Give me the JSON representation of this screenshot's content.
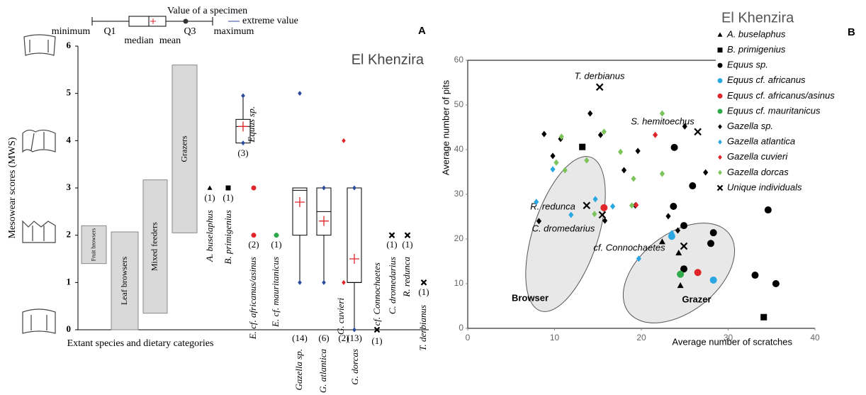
{
  "chart_data": [
    {
      "type": "box",
      "panel": "A",
      "title": "El Khenzira",
      "y_label": "Mesowear scores (MWS)",
      "x_label": "Extant species and dietary categories",
      "ylim": [
        0,
        6
      ],
      "yticks": [
        0,
        1,
        2,
        3,
        4,
        5,
        6
      ],
      "box_key": [
        "minimum",
        "Q1",
        "median",
        "mean",
        "Q3",
        "maximum",
        "Value of a specimen",
        "extreme value"
      ],
      "dietary_categories": [
        {
          "label": "Fruit browsers",
          "low": 1.4,
          "high": 2.2
        },
        {
          "label": "Leaf browsers",
          "low": 0,
          "high": 2.07
        },
        {
          "label": "Mixed feeders",
          "low": 0.35,
          "high": 3.17
        },
        {
          "label": "Grazers",
          "low": 2.05,
          "high": 5.6
        }
      ],
      "taxa": [
        {
          "name": "A. buselaphus",
          "n": "(1)",
          "marker": "triangle",
          "color": "#000000",
          "values": [
            3
          ]
        },
        {
          "name": "B. primigenius",
          "n": "(1)",
          "marker": "square",
          "color": "#000000",
          "values": [
            3
          ]
        },
        {
          "name": "Equus sp.",
          "n": "(3)",
          "marker": "diamond",
          "color": "#2b4a9c",
          "values": [
            4.95,
            3.95
          ],
          "box": {
            "min": 3.95,
            "q1": 3.95,
            "median": 4.3,
            "q3": 4.45,
            "max": 4.95,
            "mean": 4.3
          }
        },
        {
          "name": "E. cf. africanus/asinus",
          "n": "(2)",
          "marker": "circle",
          "color": "#e0262a",
          "values": [
            3,
            2
          ]
        },
        {
          "name": "E. cf. mauritanicus",
          "n": "(1)",
          "marker": "circle",
          "color": "#2eaa4a",
          "values": [
            2
          ]
        },
        {
          "name": "Gazella sp.",
          "n": "(14)",
          "marker": "diamond",
          "color": "#2b4a9c",
          "values": [
            5,
            1
          ],
          "box": {
            "min": 1,
            "q1": 2,
            "median": 2.95,
            "q3": 3,
            "max": 3,
            "mean": 2.7
          }
        },
        {
          "name": "G. atlantica",
          "n": "(6)",
          "marker": "diamond",
          "color": "#2b4a9c",
          "values": [
            3,
            1
          ],
          "box": {
            "min": 1,
            "q1": 2,
            "median": 2.5,
            "q3": 3,
            "max": 3,
            "mean": 2.3
          }
        },
        {
          "name": "G. cuvieri",
          "n": "(2)",
          "marker": "diamond",
          "color": "#e0262a",
          "values": [
            4,
            1
          ]
        },
        {
          "name": "G. dorcas",
          "n": "(13)",
          "marker": "diamond",
          "color": "#2b4a9c",
          "values": [
            3,
            0
          ],
          "box": {
            "min": 0,
            "q1": 1,
            "median": 1,
            "q3": 3,
            "max": 3,
            "mean": 1.5
          }
        },
        {
          "name": "cf. Connochaetes",
          "n": "(1)",
          "marker": "x",
          "color": "#000000",
          "values": [
            0
          ]
        },
        {
          "name": "C. dromedarius",
          "n": "(1)",
          "marker": "x",
          "color": "#000000",
          "values": [
            2
          ]
        },
        {
          "name": "R. redunca",
          "n": "(1)",
          "marker": "x",
          "color": "#000000",
          "values": [
            2
          ]
        },
        {
          "name": "T. derbianus",
          "n": "(1)",
          "marker": "x",
          "color": "#000000",
          "values": [
            1
          ]
        }
      ]
    },
    {
      "type": "scatter",
      "panel": "B",
      "title": "El Khenzira",
      "x_label": "Average number of scratches",
      "y_label": "Average number of pits",
      "xlim": [
        0,
        40
      ],
      "xticks": [
        0,
        10,
        20,
        30,
        40
      ],
      "ylim": [
        0,
        60
      ],
      "yticks": [
        0,
        10,
        20,
        30,
        40,
        50,
        60
      ],
      "annotations": [
        "T. derbianus",
        "S. hemitoechus",
        "R. redunca",
        "C. dromedarius",
        "cf. Connochaetes",
        "Browser",
        "Grazer"
      ],
      "series": [
        {
          "name": "A. buselaphus",
          "marker": "triangle",
          "color": "#000000",
          "x": [
            22.4,
            24.3,
            24.5
          ],
          "y": [
            19.4,
            16.9,
            9.6
          ]
        },
        {
          "name": "B. primigenius",
          "marker": "square",
          "color": "#000000",
          "x": [
            13.2,
            34.1
          ],
          "y": [
            40.6,
            2.5
          ]
        },
        {
          "name": "Equus sp.",
          "marker": "circle",
          "color": "#000000",
          "x": [
            23.8,
            34.6,
            25.9,
            23.7,
            24.9,
            28.3,
            28.0,
            24.9,
            33.1,
            35.5
          ],
          "y": [
            40.5,
            26.5,
            31.9,
            27.3,
            23.0,
            21.4,
            19.0,
            13.3,
            11.9,
            10.0
          ]
        },
        {
          "name": "Equus cf. africanus",
          "marker": "circle",
          "color": "#2aa7e1",
          "x": [
            23.5,
            28.3
          ],
          "y": [
            20.6,
            10.8
          ]
        },
        {
          "name": "Equus cf. africanus/asinus",
          "marker": "circle",
          "color": "#e0262a",
          "x": [
            15.7,
            26.5
          ],
          "y": [
            27.0,
            12.5
          ]
        },
        {
          "name": "Equus cf. mauritanicus",
          "marker": "circle",
          "color": "#2eaa4a",
          "x": [
            24.5
          ],
          "y": [
            12.1
          ]
        },
        {
          "name": "Gazella sp.",
          "marker": "diamond",
          "color": "#000000",
          "x": [
            8.8,
            9.8,
            10.7,
            14.1,
            15.3,
            18.0,
            19.6,
            25.0,
            27.4,
            23.1,
            24.2,
            15.8,
            8.2,
            19.3
          ],
          "y": [
            43.5,
            38.6,
            42.4,
            48.1,
            43.3,
            35.4,
            39.7,
            45.2,
            34.9,
            25.1,
            21.9,
            24.1,
            24.0,
            27.5
          ]
        },
        {
          "name": "Gazella atlantica",
          "marker": "diamond",
          "color": "#2aa7e1",
          "x": [
            7.9,
            9.8,
            11.9,
            14.7,
            16.7,
            23.5,
            19.7
          ],
          "y": [
            28.3,
            35.6,
            25.4,
            28.9,
            27.3,
            21.3,
            15.6
          ]
        },
        {
          "name": "Gazella cuvieri",
          "marker": "diamond",
          "color": "#e0262a",
          "x": [
            19.4,
            21.6
          ],
          "y": [
            27.6,
            43.3
          ]
        },
        {
          "name": "Gazella dorcas",
          "marker": "diamond",
          "color": "#7cc35a",
          "x": [
            10.8,
            11.2,
            10.2,
            13.7,
            15.7,
            14.6,
            17.6,
            18.9,
            19.1,
            22.4,
            22.4
          ],
          "y": [
            42.9,
            35.4,
            37.1,
            37.6,
            44.0,
            25.6,
            39.5,
            27.5,
            33.5,
            48.1,
            34.6
          ]
        },
        {
          "name": "Unique individuals",
          "marker": "x",
          "color": "#000000",
          "x": [
            15.2,
            26.5,
            13.7,
            15.5,
            24.9
          ],
          "y": [
            54.0,
            44.0,
            27.5,
            25.4,
            18.4
          ]
        }
      ]
    }
  ]
}
